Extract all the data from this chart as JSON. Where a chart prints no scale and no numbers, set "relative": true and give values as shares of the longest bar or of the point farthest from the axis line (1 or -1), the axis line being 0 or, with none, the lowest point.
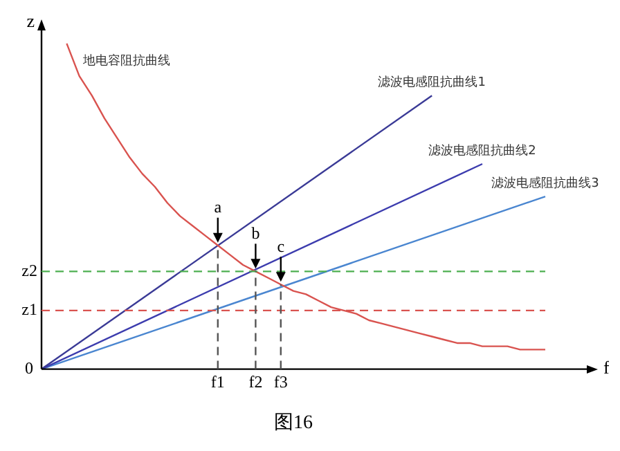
{
  "chart_data": {
    "type": "line",
    "title": "图16",
    "xlabel": "f",
    "ylabel": "z",
    "relative": true,
    "legend": false,
    "marker": "none",
    "line_style": "solid",
    "categories": [
      null,
      null,
      null,
      null,
      null,
      null,
      null,
      null,
      null,
      null,
      null,
      null,
      null,
      null,
      "f1",
      null,
      null,
      "f2",
      null,
      "f3",
      null,
      null,
      null,
      null,
      null,
      null,
      null,
      null,
      null,
      null,
      null,
      null,
      null,
      null,
      null,
      null,
      null,
      null,
      null,
      null,
      null
    ],
    "series": [
      {
        "name": "地电容阻抗曲线",
        "color": "#d9534f",
        "values": [
          null,
          null,
          1.0,
          0.9,
          0.84,
          0.77,
          0.71,
          0.65,
          0.6,
          0.56,
          0.51,
          0.47,
          0.44,
          0.41,
          0.38,
          0.35,
          0.32,
          0.3,
          0.28,
          0.26,
          0.24,
          0.23,
          0.21,
          0.19,
          0.18,
          0.17,
          0.15,
          0.14,
          0.13,
          0.12,
          0.11,
          0.1,
          0.09,
          0.08,
          0.08,
          0.07,
          0.07,
          0.07,
          0.06,
          0.06,
          0.06
        ]
      },
      {
        "name": "滤波电感阻抗曲线1",
        "color": "#3a3a96",
        "values": [
          0,
          null,
          null,
          null,
          null,
          null,
          null,
          null,
          null,
          null,
          null,
          null,
          null,
          null,
          null,
          null,
          null,
          null,
          null,
          null,
          null,
          null,
          null,
          null,
          null,
          null,
          null,
          null,
          null,
          null,
          null,
          0.84,
          null,
          null,
          null,
          null,
          null,
          null,
          null,
          null,
          null
        ]
      },
      {
        "name": "滤波电感阻抗曲线2",
        "color": "#3c3cae",
        "values": [
          0,
          null,
          null,
          null,
          null,
          null,
          null,
          null,
          null,
          null,
          null,
          null,
          null,
          null,
          null,
          null,
          null,
          null,
          null,
          null,
          null,
          null,
          null,
          null,
          null,
          null,
          null,
          null,
          null,
          null,
          null,
          null,
          null,
          null,
          null,
          0.63,
          null,
          null,
          null,
          null,
          null
        ]
      },
      {
        "name": "滤波电感阻抗曲线3",
        "color": "#4a86d0",
        "values": [
          0,
          null,
          null,
          null,
          null,
          null,
          null,
          null,
          null,
          null,
          null,
          null,
          null,
          null,
          null,
          null,
          null,
          null,
          null,
          null,
          null,
          null,
          null,
          null,
          null,
          null,
          null,
          null,
          null,
          null,
          null,
          null,
          null,
          null,
          null,
          null,
          null,
          null,
          null,
          null,
          0.53
        ]
      }
    ],
    "ref_lines": [
      {
        "axis": "y",
        "value": 0.3,
        "label": "z2",
        "color": "#4caf50",
        "line_style": "dashed"
      },
      {
        "axis": "y",
        "value": 0.18,
        "label": "z1",
        "color": "#d9534f",
        "line_style": "dashed"
      },
      {
        "axis": "x",
        "value": "f1",
        "color": "#555555",
        "line_style": "dashed"
      },
      {
        "axis": "x",
        "value": "f2",
        "color": "#555555",
        "line_style": "dashed"
      },
      {
        "axis": "x",
        "value": "f3",
        "color": "#555555",
        "line_style": "dashed"
      }
    ],
    "annotations": [
      "0",
      {
        "text": "a",
        "x": "f1",
        "y": 0.38
      },
      {
        "text": "b",
        "x": "f2",
        "y": 0.3
      },
      {
        "text": "c",
        "x": "f3",
        "y": 0.26
      }
    ]
  }
}
